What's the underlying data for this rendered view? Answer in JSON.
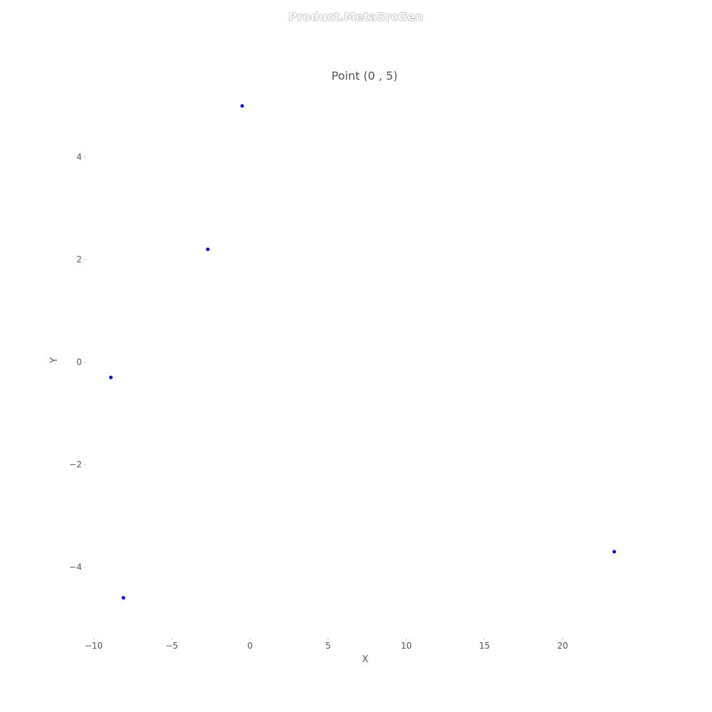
{
  "header": {
    "text": "Product.MetaSrcGen"
  },
  "chart_data": {
    "type": "scatter",
    "title": "Point (0 , 5)",
    "xlabel": "X",
    "ylabel": "Y",
    "xlim": [
      -10.3,
      25
    ],
    "ylim": [
      -5.3,
      5.4
    ],
    "xticks": [
      -10,
      -5,
      0,
      5,
      10,
      15,
      20
    ],
    "yticks": [
      -4,
      -2,
      0,
      2,
      4
    ],
    "grid": false,
    "color": "#0000ff",
    "points": [
      {
        "x": -0.5,
        "y": 5.0
      },
      {
        "x": -2.7,
        "y": 2.2
      },
      {
        "x": -8.9,
        "y": -0.3
      },
      {
        "x": -8.1,
        "y": -4.6
      },
      {
        "x": 23.3,
        "y": -3.7
      }
    ]
  }
}
